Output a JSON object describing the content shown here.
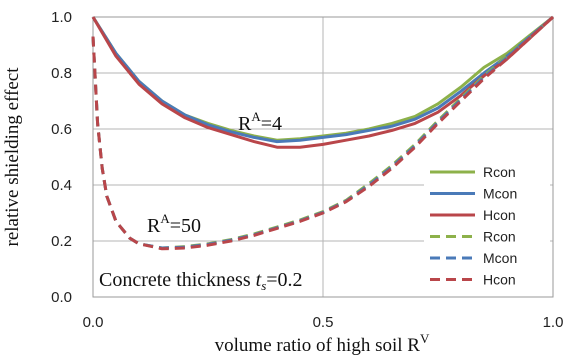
{
  "chart_data": {
    "type": "line",
    "xlabel": "volume ratio of high soil R",
    "xlabel_sup": "V",
    "ylabel": "relative shielding effect",
    "xlim": [
      0.0,
      1.0
    ],
    "ylim": [
      0.0,
      1.0
    ],
    "x_ticks": [
      0.0,
      0.5,
      1.0
    ],
    "x_tick_labels": [
      "0.0",
      "0.5",
      "1.0"
    ],
    "y_ticks": [
      0.0,
      0.2,
      0.4,
      0.6,
      0.8,
      1.0
    ],
    "y_tick_labels": [
      "0.0",
      "0.2",
      "0.4",
      "0.6",
      "0.8",
      "1.0"
    ],
    "grid": true,
    "legend_position": "bottom-right",
    "colors": {
      "Rcon": "#8db14a",
      "Mcon": "#4a7ab8",
      "Hcon": "#b9464a"
    },
    "annotations": [
      {
        "base": "R",
        "sup": "A",
        "rest": "=4"
      },
      {
        "base": "R",
        "sup": "A",
        "rest": "=50"
      }
    ],
    "thickness_note": {
      "prefix": "Concrete thickness ",
      "var": "t",
      "sub": "s",
      "suffix": "=0.2"
    },
    "series": [
      {
        "name": "Rcon",
        "group": "R^A=4",
        "style": "solid",
        "color": "#8db14a",
        "x": [
          0,
          0.05,
          0.1,
          0.15,
          0.2,
          0.25,
          0.3,
          0.35,
          0.4,
          0.45,
          0.5,
          0.55,
          0.6,
          0.65,
          0.7,
          0.75,
          0.8,
          0.85,
          0.9,
          0.95,
          1.0
        ],
        "y": [
          1.0,
          0.87,
          0.77,
          0.7,
          0.65,
          0.62,
          0.595,
          0.575,
          0.56,
          0.565,
          0.575,
          0.585,
          0.6,
          0.62,
          0.645,
          0.69,
          0.75,
          0.82,
          0.87,
          0.935,
          1.0
        ]
      },
      {
        "name": "Mcon",
        "group": "R^A=4",
        "style": "solid",
        "color": "#4a7ab8",
        "x": [
          0,
          0.05,
          0.1,
          0.15,
          0.2,
          0.25,
          0.3,
          0.35,
          0.4,
          0.45,
          0.5,
          0.55,
          0.6,
          0.65,
          0.7,
          0.75,
          0.8,
          0.85,
          0.9,
          0.95,
          1.0
        ],
        "y": [
          1.0,
          0.87,
          0.77,
          0.7,
          0.65,
          0.615,
          0.59,
          0.57,
          0.555,
          0.56,
          0.57,
          0.58,
          0.595,
          0.61,
          0.635,
          0.675,
          0.735,
          0.8,
          0.86,
          0.93,
          1.0
        ]
      },
      {
        "name": "Hcon",
        "group": "R^A=4",
        "style": "solid",
        "color": "#b9464a",
        "x": [
          0,
          0.05,
          0.1,
          0.15,
          0.2,
          0.25,
          0.3,
          0.35,
          0.4,
          0.45,
          0.5,
          0.55,
          0.6,
          0.65,
          0.7,
          0.75,
          0.8,
          0.85,
          0.9,
          0.95,
          1.0
        ],
        "y": [
          1.0,
          0.86,
          0.76,
          0.69,
          0.64,
          0.605,
          0.58,
          0.555,
          0.535,
          0.535,
          0.545,
          0.56,
          0.575,
          0.595,
          0.62,
          0.66,
          0.72,
          0.79,
          0.85,
          0.925,
          1.0
        ]
      },
      {
        "name": "Rcon",
        "group": "R^A=50",
        "style": "dashed",
        "color": "#8db14a",
        "x": [
          0,
          0.01,
          0.02,
          0.03,
          0.05,
          0.08,
          0.1,
          0.15,
          0.2,
          0.25,
          0.3,
          0.35,
          0.4,
          0.45,
          0.5,
          0.55,
          0.6,
          0.65,
          0.7,
          0.75,
          0.8,
          0.85,
          0.9,
          0.95,
          1.0
        ],
        "y": [
          0.93,
          0.62,
          0.46,
          0.36,
          0.27,
          0.21,
          0.19,
          0.175,
          0.18,
          0.19,
          0.205,
          0.225,
          0.25,
          0.275,
          0.305,
          0.345,
          0.405,
          0.47,
          0.545,
          0.63,
          0.71,
          0.79,
          0.86,
          0.93,
          1.0
        ]
      },
      {
        "name": "Mcon",
        "group": "R^A=50",
        "style": "dashed",
        "color": "#4a7ab8",
        "x": [
          0,
          0.01,
          0.02,
          0.03,
          0.05,
          0.08,
          0.1,
          0.15,
          0.2,
          0.25,
          0.3,
          0.35,
          0.4,
          0.45,
          0.5,
          0.55,
          0.6,
          0.65,
          0.7,
          0.75,
          0.8,
          0.85,
          0.9,
          0.95,
          1.0
        ],
        "y": [
          0.93,
          0.62,
          0.46,
          0.36,
          0.27,
          0.21,
          0.19,
          0.175,
          0.178,
          0.188,
          0.203,
          0.222,
          0.247,
          0.272,
          0.302,
          0.342,
          0.4,
          0.465,
          0.54,
          0.625,
          0.705,
          0.785,
          0.855,
          0.93,
          1.0
        ]
      },
      {
        "name": "Hcon",
        "group": "R^A=50",
        "style": "dashed",
        "color": "#b9464a",
        "x": [
          0,
          0.01,
          0.02,
          0.03,
          0.05,
          0.08,
          0.1,
          0.15,
          0.2,
          0.25,
          0.3,
          0.35,
          0.4,
          0.45,
          0.5,
          0.55,
          0.6,
          0.65,
          0.7,
          0.75,
          0.8,
          0.85,
          0.9,
          0.95,
          1.0
        ],
        "y": [
          0.93,
          0.62,
          0.46,
          0.36,
          0.27,
          0.21,
          0.19,
          0.172,
          0.175,
          0.185,
          0.2,
          0.22,
          0.245,
          0.27,
          0.3,
          0.34,
          0.395,
          0.46,
          0.535,
          0.62,
          0.7,
          0.78,
          0.85,
          0.925,
          1.0
        ]
      }
    ]
  }
}
